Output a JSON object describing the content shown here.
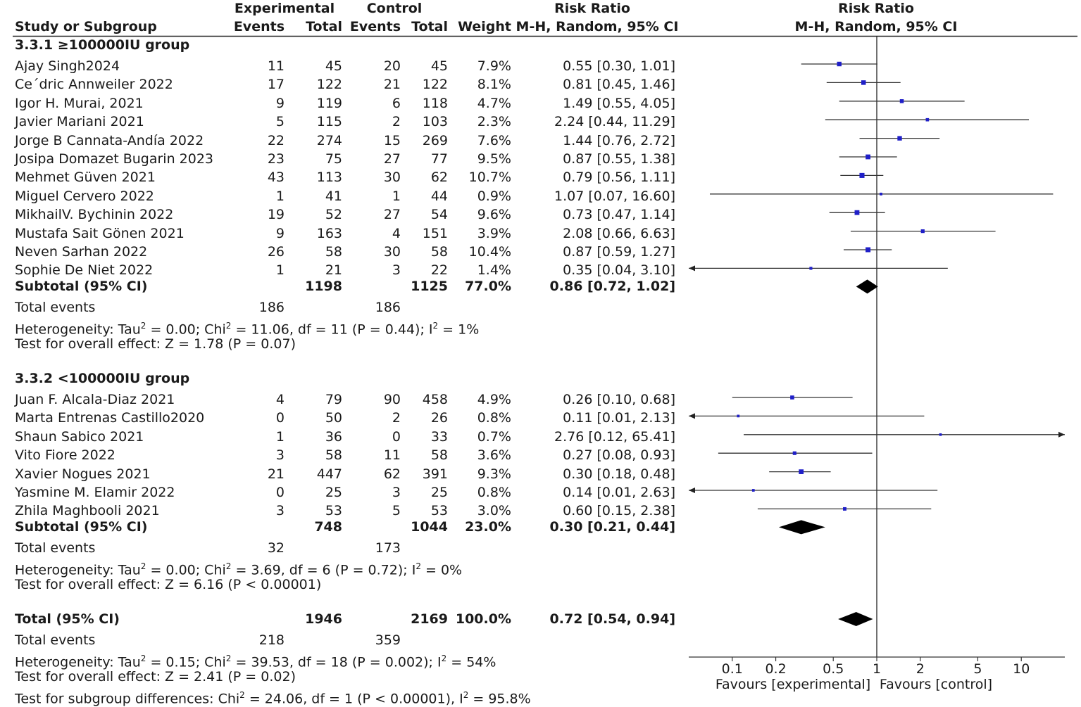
{
  "chart_data": {
    "type": "forest",
    "header": {
      "study_col": "Study or Subgroup",
      "exp_group": "Experimental",
      "ctrl_group": "Control",
      "events": "Events",
      "total": "Total",
      "weight": "Weight",
      "rr_title": "Risk Ratio",
      "rr_method": "M-H, Random, 95% CI",
      "plot_title": "Risk Ratio",
      "plot_method": "M-H, Random, 95% CI"
    },
    "x_axis": {
      "scale": "log",
      "range": [
        0.05,
        20
      ],
      "ticks": [
        0.1,
        0.2,
        0.5,
        1,
        2,
        5,
        10
      ],
      "tick_labels": [
        "0.1",
        "0.2",
        "0.5",
        "1",
        "2",
        "5",
        "10"
      ],
      "favours_left": "Favours [experimental]",
      "favours_right": "Favours [control]"
    },
    "subgroups": [
      {
        "title": "3.3.1 ≥100000IU group",
        "studies": [
          {
            "name": "Ajay Singh2024",
            "e_events": "11",
            "e_total": "45",
            "c_events": "20",
            "c_total": "45",
            "weight": "7.9%",
            "ci_text": "0.55 [0.30, 1.01]",
            "rr": 0.55,
            "lo": 0.3,
            "hi": 1.01,
            "w": 7.9
          },
          {
            "name": "Ce´dric Annweiler 2022",
            "e_events": "17",
            "e_total": "122",
            "c_events": "21",
            "c_total": "122",
            "weight": "8.1%",
            "ci_text": "0.81 [0.45, 1.46]",
            "rr": 0.81,
            "lo": 0.45,
            "hi": 1.46,
            "w": 8.1
          },
          {
            "name": "Igor H. Murai, 2021",
            "e_events": "9",
            "e_total": "119",
            "c_events": "6",
            "c_total": "118",
            "weight": "4.7%",
            "ci_text": "1.49 [0.55, 4.05]",
            "rr": 1.49,
            "lo": 0.55,
            "hi": 4.05,
            "w": 4.7
          },
          {
            "name": "Javier Mariani 2021",
            "e_events": "5",
            "e_total": "115",
            "c_events": "2",
            "c_total": "103",
            "weight": "2.3%",
            "ci_text": "2.24 [0.44, 11.29]",
            "rr": 2.24,
            "lo": 0.44,
            "hi": 11.29,
            "w": 2.3
          },
          {
            "name": "Jorge B Cannata-Andía 2022",
            "e_events": "22",
            "e_total": "274",
            "c_events": "15",
            "c_total": "269",
            "weight": "7.6%",
            "ci_text": "1.44 [0.76, 2.72]",
            "rr": 1.44,
            "lo": 0.76,
            "hi": 2.72,
            "w": 7.6
          },
          {
            "name": "Josipa Domazet Bugarin 2023",
            "e_events": "23",
            "e_total": "75",
            "c_events": "27",
            "c_total": "77",
            "weight": "9.5%",
            "ci_text": "0.87 [0.55, 1.38]",
            "rr": 0.87,
            "lo": 0.55,
            "hi": 1.38,
            "w": 9.5
          },
          {
            "name": "Mehmet Güven 2021",
            "e_events": "43",
            "e_total": "113",
            "c_events": "30",
            "c_total": "62",
            "weight": "10.7%",
            "ci_text": "0.79 [0.56, 1.11]",
            "rr": 0.79,
            "lo": 0.56,
            "hi": 1.11,
            "w": 10.7
          },
          {
            "name": "Miguel Cervero 2022",
            "e_events": "1",
            "e_total": "41",
            "c_events": "1",
            "c_total": "44",
            "weight": "0.9%",
            "ci_text": "1.07 [0.07, 16.60]",
            "rr": 1.07,
            "lo": 0.07,
            "hi": 16.6,
            "w": 0.9
          },
          {
            "name": "MikhailV. Bychinin 2022",
            "e_events": "19",
            "e_total": "52",
            "c_events": "27",
            "c_total": "54",
            "weight": "9.6%",
            "ci_text": "0.73 [0.47, 1.14]",
            "rr": 0.73,
            "lo": 0.47,
            "hi": 1.14,
            "w": 9.6
          },
          {
            "name": "Mustafa Sait Gönen 2021",
            "e_events": "9",
            "e_total": "163",
            "c_events": "4",
            "c_total": "151",
            "weight": "3.9%",
            "ci_text": "2.08 [0.66, 6.63]",
            "rr": 2.08,
            "lo": 0.66,
            "hi": 6.63,
            "w": 3.9
          },
          {
            "name": "Neven Sarhan 2022",
            "e_events": "26",
            "e_total": "58",
            "c_events": "30",
            "c_total": "58",
            "weight": "10.4%",
            "ci_text": "0.87 [0.59, 1.27]",
            "rr": 0.87,
            "lo": 0.59,
            "hi": 1.27,
            "w": 10.4
          },
          {
            "name": "Sophie De Niet 2022",
            "e_events": "1",
            "e_total": "21",
            "c_events": "3",
            "c_total": "22",
            "weight": "1.4%",
            "ci_text": "0.35 [0.04, 3.10]",
            "rr": 0.35,
            "lo": 0.04,
            "hi": 3.1,
            "w": 1.4
          }
        ],
        "subtotal": {
          "label": "Subtotal (95% CI)",
          "e_total": "1198",
          "c_total": "1125",
          "weight": "77.0%",
          "ci_text": "0.86 [0.72, 1.02]",
          "rr": 0.86,
          "lo": 0.72,
          "hi": 1.02
        },
        "total_events": {
          "label": "Total events",
          "e": "186",
          "c": "186"
        },
        "heterogeneity": {
          "prefix": "Heterogeneity: Tau",
          "tau2": "0.00",
          "chi2": "11.06",
          "df": "11",
          "p": "0.44",
          "i2": "1%"
        },
        "overall_effect": "Test for overall effect: Z = 1.78 (P = 0.07)"
      },
      {
        "title": "3.3.2 <100000IU group",
        "studies": [
          {
            "name": "Juan F. Alcala-Diaz 2021",
            "e_events": "4",
            "e_total": "79",
            "c_events": "90",
            "c_total": "458",
            "weight": "4.9%",
            "ci_text": "0.26 [0.10, 0.68]",
            "rr": 0.26,
            "lo": 0.1,
            "hi": 0.68,
            "w": 4.9
          },
          {
            "name": "Marta Entrenas Castillo2020",
            "e_events": "0",
            "e_total": "50",
            "c_events": "2",
            "c_total": "26",
            "weight": "0.8%",
            "ci_text": "0.11 [0.01, 2.13]",
            "rr": 0.11,
            "lo": 0.01,
            "hi": 2.13,
            "w": 0.8
          },
          {
            "name": "Shaun Sabico  2021",
            "e_events": "1",
            "e_total": "36",
            "c_events": "0",
            "c_total": "33",
            "weight": "0.7%",
            "ci_text": "2.76 [0.12, 65.41]",
            "rr": 2.76,
            "lo": 0.12,
            "hi": 65.41,
            "w": 0.7
          },
          {
            "name": "Vito Fiore 2022",
            "e_events": "3",
            "e_total": "58",
            "c_events": "11",
            "c_total": "58",
            "weight": "3.6%",
            "ci_text": "0.27 [0.08, 0.93]",
            "rr": 0.27,
            "lo": 0.08,
            "hi": 0.93,
            "w": 3.6
          },
          {
            "name": "Xavier Nogues 2021",
            "e_events": "21",
            "e_total": "447",
            "c_events": "62",
            "c_total": "391",
            "weight": "9.3%",
            "ci_text": "0.30 [0.18, 0.48]",
            "rr": 0.3,
            "lo": 0.18,
            "hi": 0.48,
            "w": 9.3
          },
          {
            "name": "Yasmine M. Elamir 2022",
            "e_events": "0",
            "e_total": "25",
            "c_events": "3",
            "c_total": "25",
            "weight": "0.8%",
            "ci_text": "0.14 [0.01, 2.63]",
            "rr": 0.14,
            "lo": 0.01,
            "hi": 2.63,
            "w": 0.8
          },
          {
            "name": "Zhila Maghbooli 2021",
            "e_events": "3",
            "e_total": "53",
            "c_events": "5",
            "c_total": "53",
            "weight": "3.0%",
            "ci_text": "0.60 [0.15, 2.38]",
            "rr": 0.6,
            "lo": 0.15,
            "hi": 2.38,
            "w": 3.0
          }
        ],
        "subtotal": {
          "label": "Subtotal (95% CI)",
          "e_total": "748",
          "c_total": "1044",
          "weight": "23.0%",
          "ci_text": "0.30 [0.21, 0.44]",
          "rr": 0.3,
          "lo": 0.21,
          "hi": 0.44
        },
        "total_events": {
          "label": "Total events",
          "e": "32",
          "c": "173"
        },
        "heterogeneity": {
          "prefix": "Heterogeneity: Tau",
          "tau2": "0.00",
          "chi2": "3.69",
          "df": "6",
          "p": "0.72",
          "i2": "0%"
        },
        "overall_effect": "Test for overall effect: Z = 6.16 (P < 0.00001)"
      }
    ],
    "total": {
      "label": "Total (95% CI)",
      "e_total": "1946",
      "c_total": "2169",
      "weight": "100.0%",
      "ci_text": "0.72 [0.54, 0.94]",
      "rr": 0.72,
      "lo": 0.54,
      "hi": 0.94,
      "total_events": {
        "label": "Total events",
        "e": "218",
        "c": "359"
      },
      "heterogeneity": {
        "prefix": "Heterogeneity: Tau",
        "tau2": "0.15",
        "chi2": "39.53",
        "df": "18",
        "p": "0.002",
        "i2": "54%"
      },
      "overall_effect": "Test for overall effect: Z = 2.41 (P = 0.02)",
      "subgroup_diff": {
        "prefix": "Test for subgroup differences: Chi",
        "chi2": "24.06",
        "df": "1",
        "p": "P < 0.00001",
        "i2": "95.8%"
      }
    },
    "colors": {
      "point": "#1f1fc8",
      "line": "#333333",
      "diamond": "#000000"
    }
  }
}
